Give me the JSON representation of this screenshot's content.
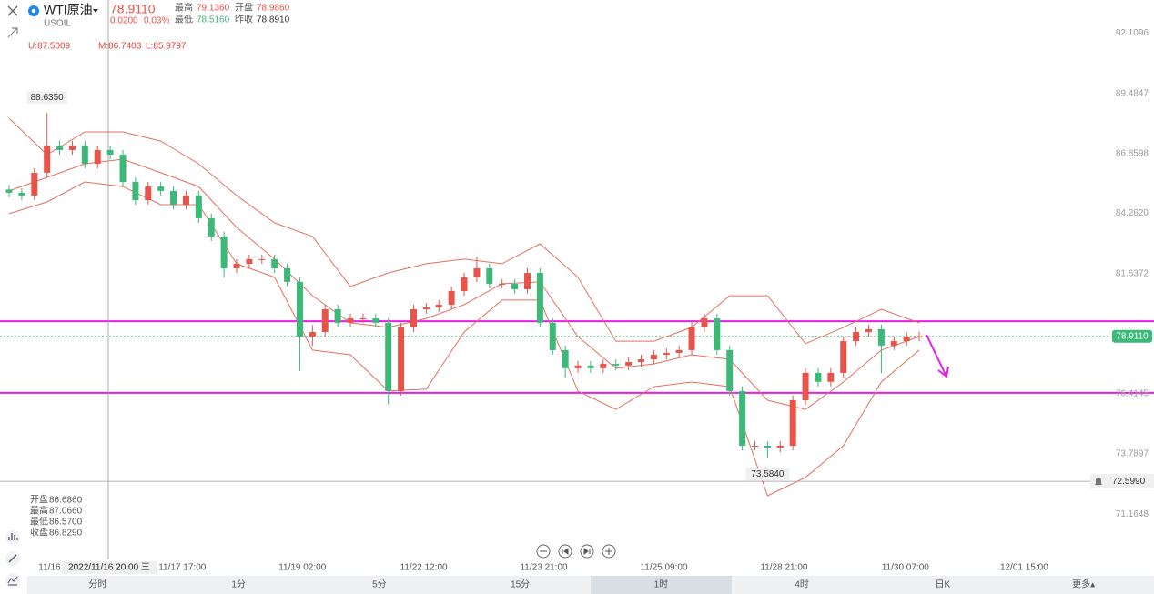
{
  "header": {
    "symbol": "WTI原油",
    "code": "USOIL",
    "price": "78.9110",
    "change": "0.0200",
    "change_pct": "0.03%",
    "stats": [
      [
        "最高",
        "79.1360"
      ],
      [
        "开盘",
        "78.9860"
      ],
      [
        "最低",
        "78.5160"
      ],
      [
        "昨收",
        "78.8910"
      ]
    ]
  },
  "boll_legend": [
    "U:87.5009",
    "M:86.7403",
    "L:85.9797"
  ],
  "ohlc_panel": [
    [
      "开盘",
      "86.6860"
    ],
    [
      "最高",
      "87.0660"
    ],
    [
      "最低",
      "86.5700"
    ],
    [
      "收盘",
      "86.8290"
    ]
  ],
  "tabs": [
    "分时",
    "1分",
    "5分",
    "15分",
    "1时",
    "4时",
    "日K",
    "更多▴"
  ],
  "active_tab": "1时",
  "chart_data": {
    "type": "candlestick",
    "open": [
      85.3,
      85.16,
      85.04,
      86.03,
      87.22,
      87.02,
      87.22,
      86.42,
      87.02,
      86.82,
      85.63,
      84.84,
      85.43,
      85.24,
      84.64,
      85.04,
      84.05,
      83.26,
      81.87,
      82.07,
      82.27,
      82.27,
      81.87,
      81.28,
      78.9,
      79.1,
      80.09,
      79.5,
      79.69,
      79.69,
      79.5,
      76.53,
      79.3,
      80.09,
      80.17,
      80.29,
      80.88,
      81.48,
      81.87,
      81.2,
      81.2,
      80.96,
      81.67,
      79.5,
      78.31,
      77.52,
      77.64,
      77.52,
      77.71,
      77.64,
      77.79,
      77.91,
      78.11,
      78.19,
      78.31,
      79.3,
      79.69,
      78.31,
      76.53,
      74.15,
      74.15,
      74.07,
      74.15,
      76.13,
      77.32,
      76.93,
      77.32,
      78.7,
      79.1,
      79.22,
      78.51,
      78.7,
      78.9
    ],
    "high": [
      85.5,
      85.36,
      86.23,
      88.635,
      87.42,
      87.42,
      87.42,
      87.22,
      87.22,
      87.02,
      85.83,
      85.63,
      85.63,
      85.44,
      85.24,
      85.24,
      84.25,
      83.46,
      82.27,
      82.47,
      82.47,
      82.47,
      82.07,
      81.48,
      79.4,
      80.29,
      80.29,
      79.89,
      79.89,
      79.89,
      79.7,
      79.5,
      80.29,
      80.37,
      80.49,
      81.08,
      81.68,
      82.35,
      82.07,
      81.4,
      81.4,
      81.87,
      81.87,
      79.7,
      78.51,
      77.84,
      77.84,
      77.91,
      77.91,
      77.99,
      78.11,
      78.31,
      78.39,
      78.51,
      79.6,
      79.89,
      79.89,
      78.51,
      76.73,
      74.35,
      74.35,
      74.35,
      76.33,
      77.52,
      77.52,
      77.52,
      78.9,
      79.3,
      79.42,
      79.42,
      78.9,
      79.1,
      79.11
    ],
    "low": [
      84.96,
      84.84,
      84.84,
      85.83,
      86.82,
      86.82,
      86.22,
      86.22,
      86.62,
      85.43,
      84.64,
      84.64,
      85.04,
      84.44,
      84.44,
      83.85,
      83.06,
      81.47,
      81.67,
      81.87,
      82.07,
      81.67,
      81.08,
      77.4,
      78.5,
      78.9,
      79.3,
      79.3,
      79.49,
      79.3,
      75.95,
      76.33,
      79.1,
      79.89,
      79.97,
      80.09,
      80.68,
      81.28,
      81.0,
      81.0,
      80.76,
      80.76,
      79.3,
      78.11,
      77.1,
      77.32,
      77.32,
      77.32,
      77.44,
      77.44,
      77.59,
      77.71,
      77.91,
      77.99,
      78.11,
      79.1,
      78.11,
      76.33,
      73.95,
      73.95,
      73.584,
      73.87,
      73.95,
      75.93,
      76.73,
      76.73,
      77.12,
      78.5,
      78.9,
      77.3,
      78.31,
      78.5,
      78.7
    ],
    "close": [
      85.16,
      85.04,
      86.03,
      87.22,
      87.02,
      87.22,
      86.42,
      87.02,
      86.82,
      85.63,
      84.84,
      85.43,
      85.24,
      84.64,
      85.04,
      84.05,
      83.26,
      81.87,
      82.07,
      82.27,
      82.27,
      81.87,
      81.28,
      78.9,
      79.1,
      80.09,
      79.5,
      79.69,
      79.69,
      79.5,
      76.53,
      79.3,
      80.09,
      80.17,
      80.29,
      80.88,
      81.48,
      81.87,
      81.2,
      81.2,
      80.96,
      81.67,
      79.5,
      78.31,
      77.52,
      77.64,
      77.52,
      77.71,
      77.64,
      77.79,
      77.91,
      78.11,
      78.19,
      78.31,
      79.3,
      79.69,
      78.31,
      76.53,
      74.15,
      74.15,
      74.07,
      74.15,
      76.13,
      77.32,
      76.93,
      77.32,
      78.7,
      79.1,
      79.22,
      78.51,
      78.7,
      78.9,
      78.91
    ],
    "up_color": "#e8534a",
    "down_color": "#3cb878",
    "bands": [
      {
        "color": "#e2715f",
        "x": [
          0,
          3,
          6,
          9,
          12,
          15,
          18,
          21,
          24,
          27,
          30,
          33,
          36,
          39,
          42,
          45,
          48,
          51,
          54,
          57,
          60,
          63,
          66,
          69,
          72
        ],
        "values": [
          88.4,
          86.82,
          87.81,
          87.81,
          87.41,
          86.42,
          85.04,
          83.85,
          83.26,
          81.08,
          81.67,
          82.07,
          82.27,
          82.07,
          82.94,
          81.48,
          78.7,
          78.7,
          79.3,
          80.68,
          80.68,
          78.59,
          79.3,
          80.09,
          79.5
        ]
      },
      {
        "color": "#e2715f",
        "x": [
          0,
          3,
          6,
          9,
          12,
          15,
          18,
          21,
          24,
          27,
          30,
          33,
          36,
          39,
          42,
          45,
          48,
          51,
          54,
          57,
          60,
          63,
          66,
          69,
          72
        ],
        "values": [
          85.24,
          85.83,
          86.42,
          86.62,
          86.03,
          85.43,
          83.65,
          82.27,
          80.68,
          79.5,
          79.3,
          79.69,
          80.29,
          81.2,
          81.28,
          78.9,
          77.52,
          77.71,
          78.11,
          77.91,
          76.13,
          75.73,
          76.92,
          78.31,
          78.9
        ]
      },
      {
        "color": "#e2715f",
        "x": [
          0,
          3,
          6,
          9,
          12,
          15,
          18,
          21,
          24,
          27,
          30,
          33,
          36,
          39,
          42,
          45,
          48,
          51,
          54,
          57,
          60,
          63,
          66,
          69,
          72
        ],
        "values": [
          84.25,
          84.76,
          85.63,
          85.43,
          84.64,
          84.64,
          82.07,
          81.48,
          78.31,
          78.11,
          76.53,
          76.61,
          79.1,
          80.49,
          80.49,
          76.53,
          75.73,
          76.72,
          76.92,
          76.72,
          71.97,
          72.77,
          74.15,
          76.92,
          78.31
        ]
      }
    ],
    "ylim": [
      69.2,
      93.55
    ],
    "yticks": [
      92.1096,
      89.4847,
      86.8598,
      {
        "value": 84.262,
        "label": "84.2620"
      },
      81.6372,
      76.4145,
      73.7897,
      71.1648
    ],
    "xlim": [
      -0.72,
      90.57
    ],
    "xticks": [
      {
        "value": 3.2,
        "label": "11/16"
      },
      {
        "value": 13.7,
        "label": "11/17 17:00"
      },
      {
        "value": 23.2,
        "label": "11/19 02:00"
      },
      {
        "value": 32.8,
        "label": "11/22 12:00"
      },
      {
        "value": 42.3,
        "label": "11/23 21:00"
      },
      {
        "value": 51.8,
        "label": "11/25 09:00"
      },
      {
        "value": 61.3,
        "label": "11/28 21:00"
      },
      {
        "value": 70.9,
        "label": "11/30 07:00"
      },
      {
        "value": 80.3,
        "label": "12/01 15:00"
      }
    ],
    "last_price": {
      "value": 78.911,
      "label": "78.9110"
    },
    "crosshair": {
      "price": {
        "value": 72.599,
        "label": "72.5990"
      },
      "time": "2022/11/16 20:00 三"
    },
    "hlines": [
      {
        "value": 79.57,
        "color": "#e81ee8"
      },
      {
        "value": 76.45,
        "color": "#e81ee8"
      }
    ],
    "high_marker": "88.6350",
    "low_marker": "73.5840"
  }
}
